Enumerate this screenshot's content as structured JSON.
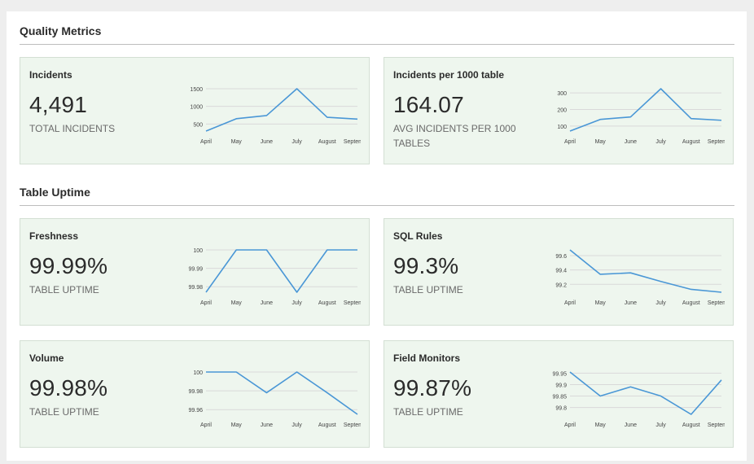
{
  "sections": [
    {
      "title": "Quality Metrics"
    },
    {
      "title": "Table Uptime"
    }
  ],
  "colors": {
    "line": "#4a97d6",
    "card_bg": "#eef6ee",
    "grid": "#d9d9d9"
  },
  "cards": [
    {
      "title": "Incidents",
      "value": "4,491",
      "caption": "TOTAL INCIDENTS",
      "chart_data": {
        "type": "line",
        "categories": [
          "April",
          "May",
          "June",
          "July",
          "August",
          "September"
        ],
        "values": [
          300,
          650,
          740,
          1500,
          690,
          640
        ],
        "ylim": [
          300,
          1500
        ],
        "yticks": [
          500,
          1000,
          1500
        ],
        "ytick_labels": [
          "500",
          "1000",
          "1500"
        ],
        "grid": true
      }
    },
    {
      "title": "Incidents per 1000 table",
      "value": "164.07",
      "caption": "AVG INCIDENTS PER 1000 TABLES",
      "chart_data": {
        "type": "line",
        "categories": [
          "April",
          "May",
          "June",
          "July",
          "August",
          "September"
        ],
        "values": [
          70,
          140,
          155,
          325,
          145,
          135
        ],
        "ylim": [
          70,
          325
        ],
        "yticks": [
          100,
          200,
          300
        ],
        "ytick_labels": [
          "100",
          "200",
          "300"
        ],
        "grid": true
      }
    },
    {
      "title": "Freshness",
      "value": "99.99%",
      "caption": "TABLE UPTIME",
      "chart_data": {
        "type": "line",
        "categories": [
          "April",
          "May",
          "June",
          "July",
          "August",
          "September"
        ],
        "values": [
          99.977,
          100,
          100,
          99.977,
          100,
          100
        ],
        "ylim": [
          99.977,
          100
        ],
        "yticks": [
          99.98,
          99.99,
          100
        ],
        "ytick_labels": [
          "99.98",
          "99.99",
          "100"
        ],
        "grid": true
      }
    },
    {
      "title": "SQL Rules",
      "value": "99.3%",
      "caption": "TABLE UPTIME",
      "chart_data": {
        "type": "line",
        "categories": [
          "April",
          "May",
          "June",
          "July",
          "August",
          "September"
        ],
        "values": [
          99.68,
          99.34,
          99.36,
          99.24,
          99.13,
          99.09
        ],
        "ylim": [
          99.09,
          99.68
        ],
        "yticks": [
          99.2,
          99.4,
          99.6
        ],
        "ytick_labels": [
          "99.2",
          "99.4",
          "99.6"
        ],
        "grid": true
      }
    },
    {
      "title": "Volume",
      "value": "99.98%",
      "caption": "TABLE UPTIME",
      "chart_data": {
        "type": "line",
        "categories": [
          "April",
          "May",
          "June",
          "July",
          "August",
          "September"
        ],
        "values": [
          100,
          100,
          99.978,
          100,
          99.978,
          99.955
        ],
        "ylim": [
          99.955,
          100
        ],
        "yticks": [
          99.96,
          99.98,
          100
        ],
        "ytick_labels": [
          "99.96",
          "99.98",
          "100"
        ],
        "grid": true
      }
    },
    {
      "title": "Field Monitors",
      "value": "99.87%",
      "caption": "TABLE UPTIME",
      "chart_data": {
        "type": "line",
        "categories": [
          "April",
          "May",
          "June",
          "July",
          "August",
          "September"
        ],
        "values": [
          99.955,
          99.85,
          99.89,
          99.85,
          99.77,
          99.92
        ],
        "ylim": [
          99.77,
          99.955
        ],
        "yticks": [
          99.8,
          99.85,
          99.9,
          99.95
        ],
        "ytick_labels": [
          "99.8",
          "99.85",
          "99.9",
          "99.95"
        ],
        "grid": true
      }
    }
  ]
}
